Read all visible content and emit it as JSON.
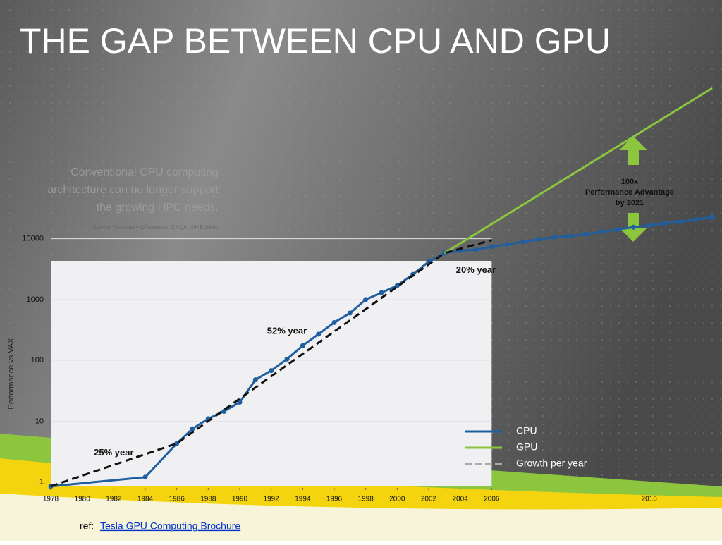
{
  "slide": {
    "title": "THE GAP BETWEEN CPU AND GPU",
    "quote": [
      "Conventional CPU computing",
      "architecture can no longer support",
      "the growing HPC needs."
    ],
    "source": "Source: Hennessy &Patterson, CAQA, 4th Edition.",
    "ref_label": "ref:",
    "ref_link": "Tesla GPU Computing Brochure"
  },
  "chart_data": {
    "type": "line",
    "y_label": "Performance vs VAX",
    "log_y": true,
    "xlim": [
      1978,
      2020
    ],
    "ylim": [
      0.8,
      3000000
    ],
    "xticks": [
      1978,
      1980,
      1982,
      1984,
      1986,
      1988,
      1990,
      1992,
      1994,
      1996,
      1998,
      2000,
      2002,
      2004,
      2006,
      2016
    ],
    "yticks": [
      1,
      10,
      100,
      1000,
      10000
    ],
    "series": [
      {
        "name": "CPU",
        "color": "#1f5fa0",
        "markers": true,
        "x": [
          1978,
          1984,
          1986,
          1987,
          1988,
          1989,
          1990,
          1991,
          1992,
          1993,
          1994,
          1995,
          1996,
          1997,
          1998,
          1999,
          2000,
          2001,
          2002,
          2003,
          2004,
          2005,
          2006,
          2007,
          2008,
          2009,
          2010,
          2011,
          2012,
          2013,
          2014,
          2015,
          2016,
          2017,
          2018,
          2019,
          2020
        ],
        "values": [
          0.85,
          1.2,
          4.3,
          7.5,
          11,
          14.5,
          20.5,
          48,
          68,
          105,
          175,
          270,
          420,
          600,
          1000,
          1300,
          1700,
          2600,
          4200,
          5800,
          6400,
          6600,
          7400,
          8100,
          8900,
          9800,
          10600,
          11000,
          11900,
          13000,
          14200,
          15500,
          16500,
          18000,
          19000,
          20800,
          22700
        ]
      },
      {
        "name": "GPU",
        "color": "#8cc63f",
        "markers": false,
        "x": [
          2003,
          2020
        ],
        "values": [
          5800,
          3000000
        ]
      },
      {
        "name": "Growth per year",
        "color": "#111111",
        "dashed": true,
        "markers": false,
        "x": [
          1978,
          1986,
          2003,
          2006
        ],
        "values": [
          0.85,
          4.3,
          5800,
          9500
        ]
      }
    ],
    "annotations": [
      {
        "text": "25% year",
        "x": 1982,
        "y": 3
      },
      {
        "text": "52% year",
        "x": 1993,
        "y": 300
      },
      {
        "text": "20% year",
        "x": 2005,
        "y": 3000
      }
    ],
    "gap_label": [
      "100x",
      "Performance Advantage",
      "by 2021"
    ]
  }
}
